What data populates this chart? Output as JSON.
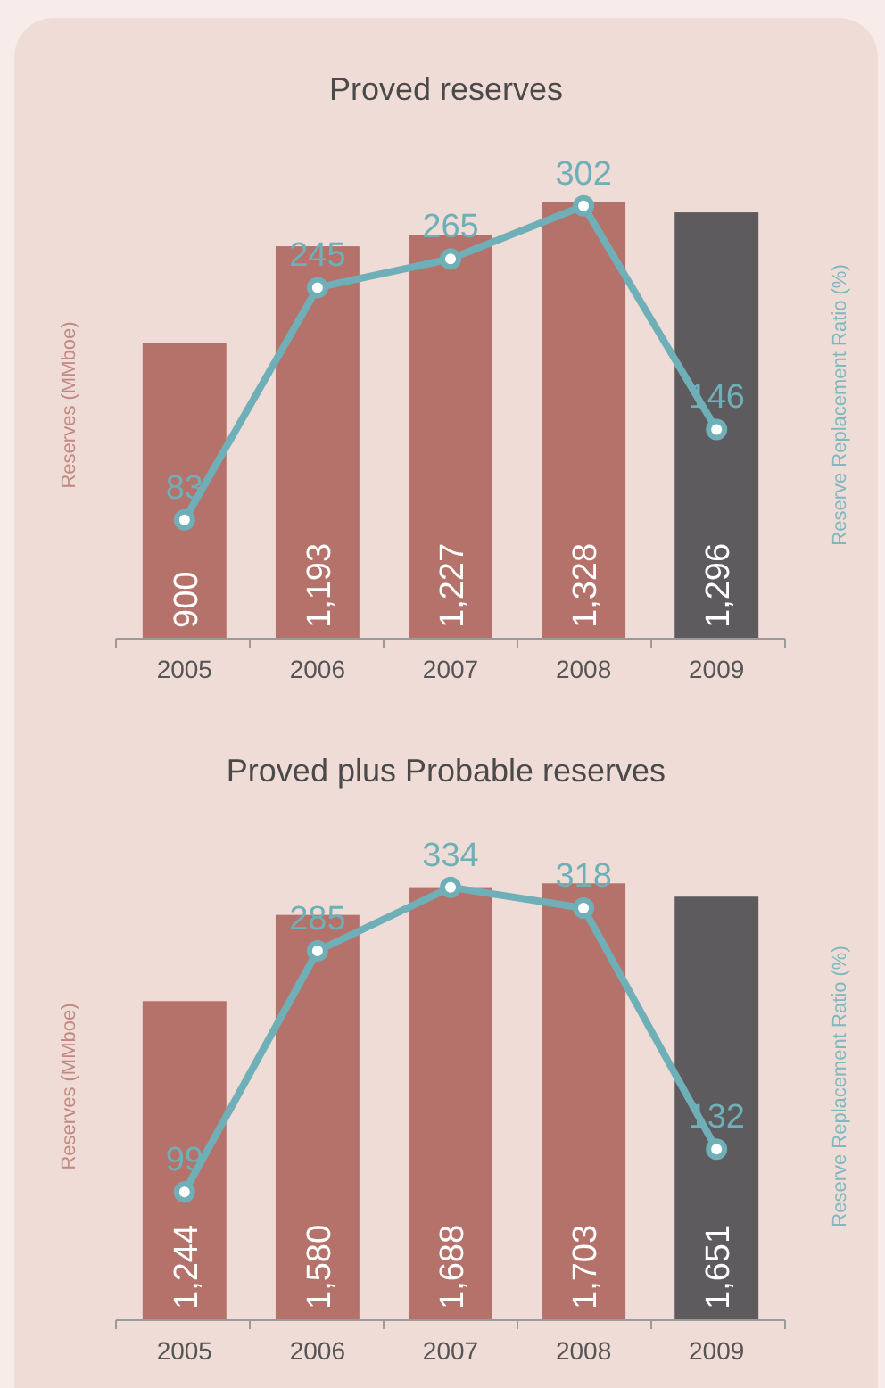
{
  "chart_data": [
    {
      "type": "bar",
      "title": "Proved reserves",
      "ylabel": "Reserves (MMboe)",
      "y2label": "Reserve Replacement Ratio (%)",
      "categories": [
        "2005",
        "2006",
        "2007",
        "2008",
        "2009"
      ],
      "data_labels": true,
      "marker": "circle",
      "series": [
        {
          "values": [
            900,
            1193,
            1227,
            1328,
            1296
          ],
          "value_labels": [
            "900",
            "1,193",
            "1,227",
            "1,328",
            "1,296"
          ],
          "colors": [
            "#b5726a",
            "#b5726a",
            "#b5726a",
            "#b5726a",
            "#5d5b5e"
          ]
        },
        {
          "type": "line",
          "axis": "y2",
          "color": "#6fb0b8",
          "values": [
            83,
            245,
            265,
            302,
            146
          ]
        }
      ]
    },
    {
      "type": "bar",
      "title": "Proved plus Probable reserves",
      "ylabel": "Reserves (MMboe)",
      "y2label": "Reserve Replacement Ratio (%)",
      "categories": [
        "2005",
        "2006",
        "2007",
        "2008",
        "2009"
      ],
      "data_labels": true,
      "marker": "circle",
      "series": [
        {
          "values": [
            1244,
            1580,
            1688,
            1703,
            1651
          ],
          "value_labels": [
            "1,244",
            "1,580",
            "1,688",
            "1,703",
            "1,651"
          ],
          "colors": [
            "#b5726a",
            "#b5726a",
            "#b5726a",
            "#b5726a",
            "#5d5b5e"
          ]
        },
        {
          "type": "line",
          "axis": "y2",
          "color": "#6fb0b8",
          "values": [
            99,
            285,
            334,
            318,
            132
          ]
        }
      ]
    }
  ]
}
